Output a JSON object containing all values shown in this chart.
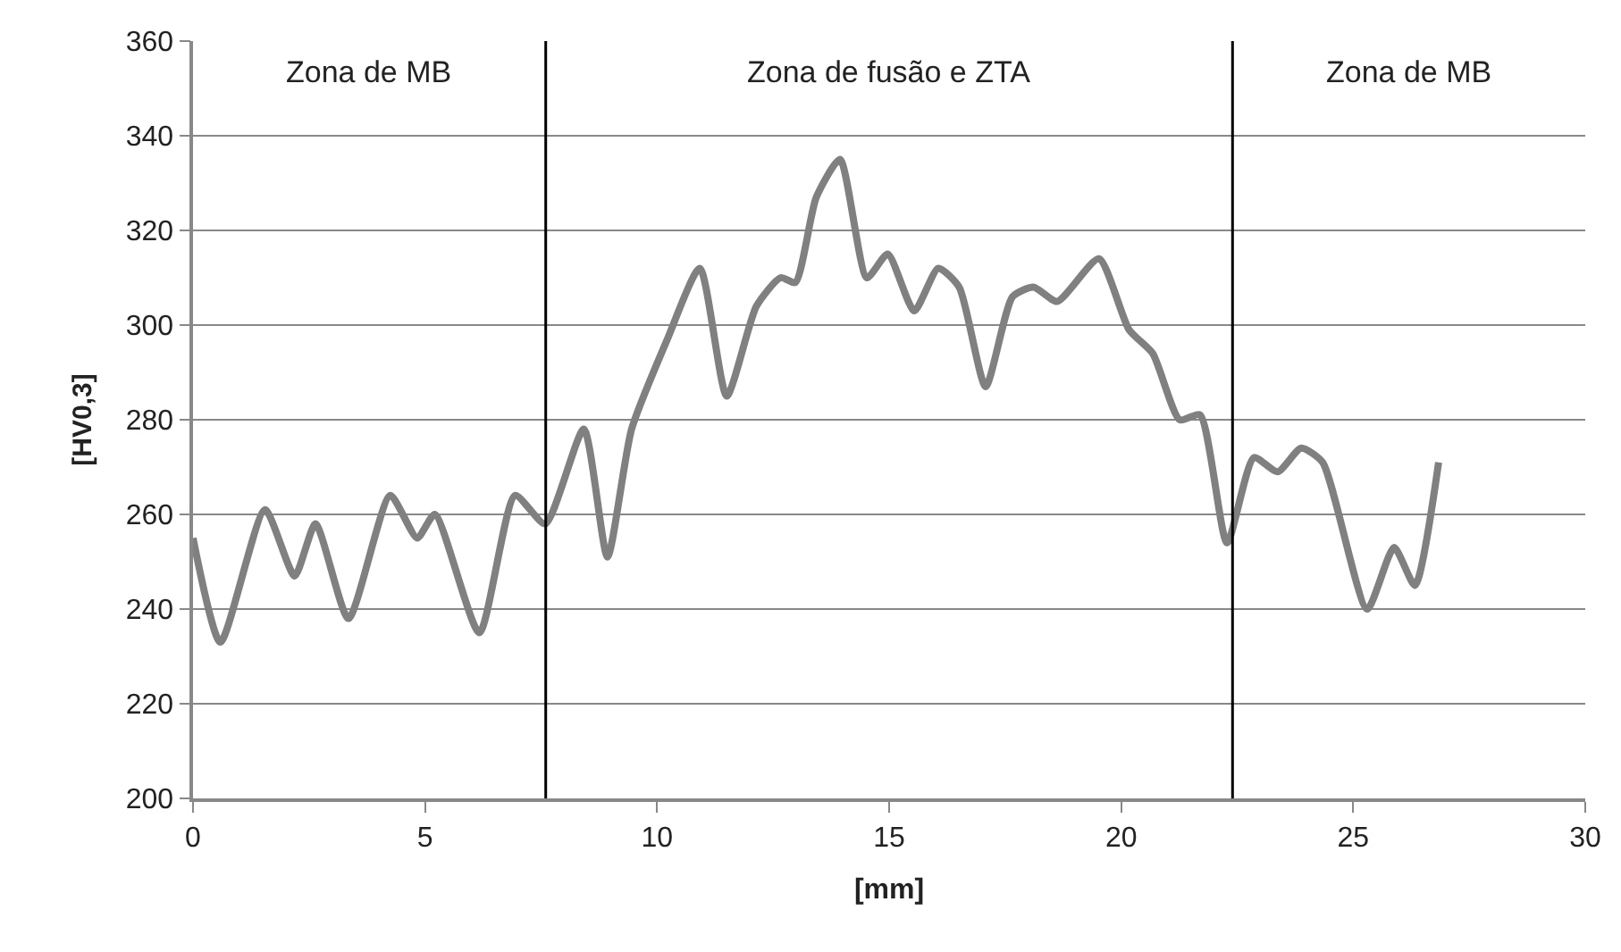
{
  "chart_data": {
    "type": "line",
    "xlabel": "[mm]",
    "ylabel": "[HV0,3]",
    "series": [
      {
        "color": "#808080",
        "x": [
          0,
          0.59,
          1.55,
          2.19,
          2.64,
          3.35,
          4.25,
          4.83,
          5.21,
          6.17,
          6.94,
          7.59,
          8.42,
          8.93,
          9.45,
          10.22,
          10.92,
          11.5,
          12.14,
          12.66,
          12.98,
          13.43,
          13.94,
          14.52,
          14.97,
          15.54,
          16.06,
          16.51,
          17.08,
          17.66,
          18.11,
          18.62,
          19.52,
          20.17,
          20.68,
          21.26,
          21.7,
          22.28,
          22.86,
          23.37,
          23.88,
          24.34,
          25.3,
          25.88,
          26.33,
          26.84
        ],
        "values": [
          255,
          233,
          261,
          247,
          258,
          238,
          264,
          255,
          260,
          235,
          264,
          258,
          278,
          251,
          278,
          297,
          312,
          285,
          304,
          310,
          309,
          327,
          335,
          310,
          315,
          303,
          312,
          308,
          287,
          306,
          308,
          305,
          314,
          299,
          294,
          280,
          281,
          254,
          272,
          269,
          274,
          271,
          240,
          253,
          245,
          271
        ]
      }
    ],
    "xlim": [
      0,
      30
    ],
    "xticks": [
      0,
      5,
      10,
      15,
      20,
      25,
      30
    ],
    "ylim": [
      200,
      360
    ],
    "yticks": [
      200,
      220,
      240,
      260,
      280,
      300,
      320,
      340,
      360
    ],
    "grid": "y",
    "marker": "none",
    "line_style": "solid",
    "ref_lines": [
      {
        "axis": "x",
        "value": 7.6,
        "color": "#000000"
      },
      {
        "axis": "x",
        "value": 22.4,
        "color": "#000000"
      }
    ],
    "annotations": [
      "Zona de MB",
      "Zona de fusão e ZTA",
      "Zona de MB"
    ]
  }
}
